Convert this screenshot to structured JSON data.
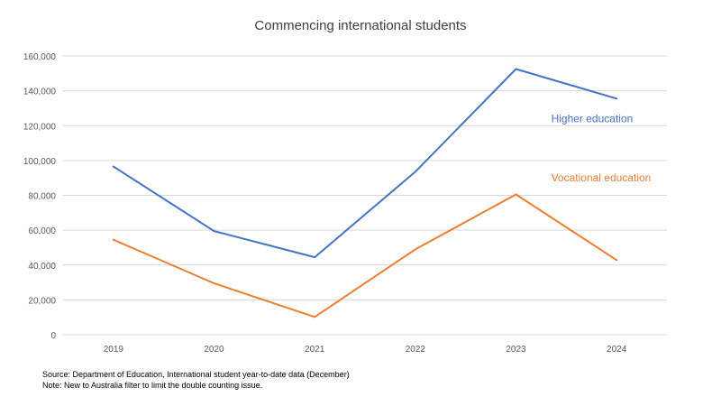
{
  "chart_data": {
    "type": "line",
    "title": "Commencing international students",
    "categories": [
      "2019",
      "2020",
      "2021",
      "2022",
      "2023",
      "2024"
    ],
    "series": [
      {
        "name": "Higher education",
        "color": "#4472C4",
        "values": [
          96500,
          59500,
          44500,
          93500,
          152500,
          135500
        ]
      },
      {
        "name": "Vocational education",
        "color": "#ED7D31",
        "values": [
          54500,
          29500,
          10200,
          49000,
          80500,
          42800
        ]
      }
    ],
    "ylim": [
      0,
      160000
    ],
    "yticks": [
      0,
      20000,
      40000,
      60000,
      80000,
      100000,
      120000,
      140000,
      160000
    ],
    "ytick_labels": [
      "0",
      "20,000",
      "40,000",
      "60,000",
      "80,000",
      "100,000",
      "120,000",
      "140,000",
      "160,000"
    ],
    "grid": true,
    "legend": "inline labels near series, right side",
    "xlabel": "",
    "ylabel": ""
  },
  "notes": {
    "source": "Source: Department of Education, International student year-to-date data (December)",
    "note": "Note: New to Australia filter to limit the double counting issue."
  },
  "colors": {
    "grid": "#D9D9D9",
    "axis_text": "#595959"
  }
}
